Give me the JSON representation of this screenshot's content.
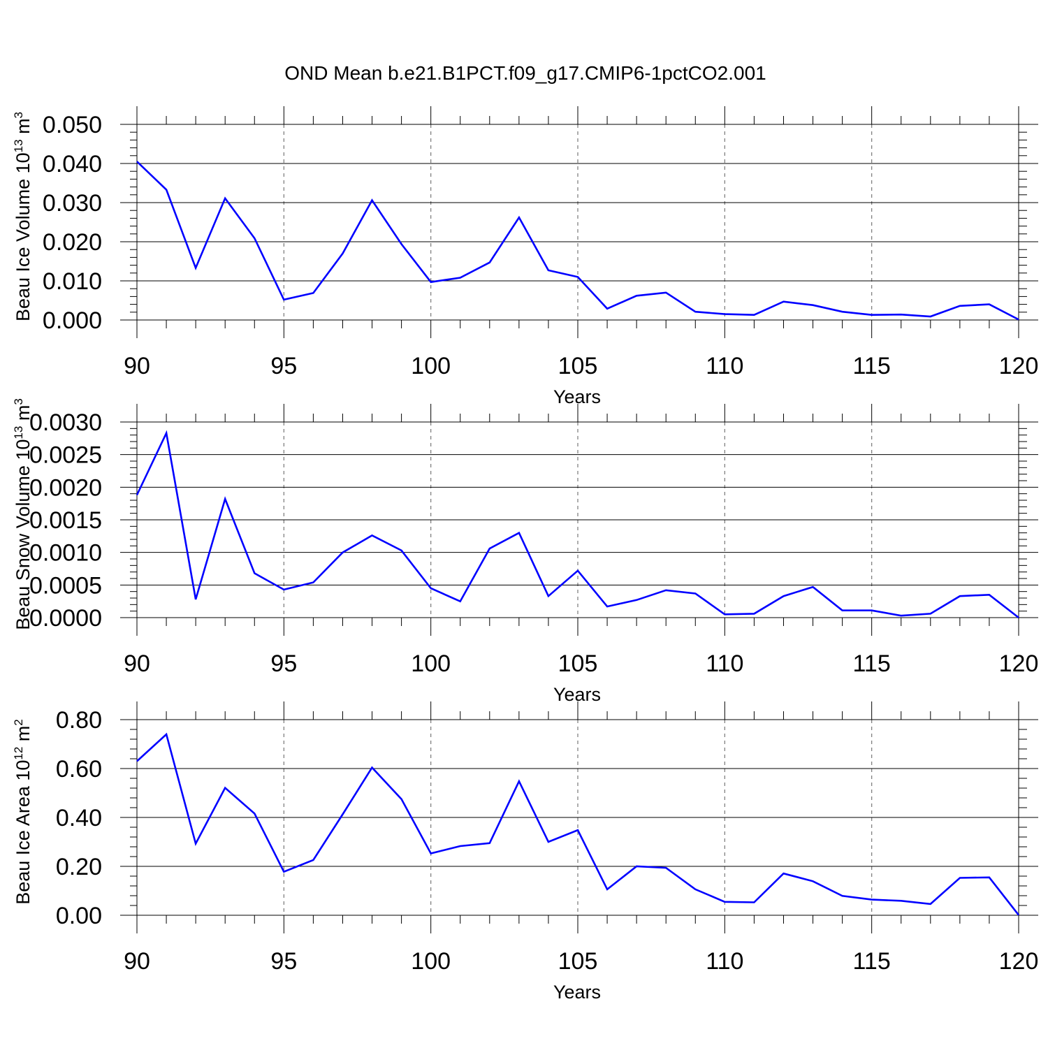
{
  "title": "OND Mean b.e21.B1PCT.f09_g17.CMIP6-1pctCO2.001",
  "line_color": "#0000ff",
  "chart_data": [
    {
      "type": "line",
      "xlabel": "Years",
      "ylabel": "Beau Ice Volume 10",
      "ylabel_sup": "13",
      "ylabel_unit": "m",
      "ylabel_unit_sup": "3",
      "xlim": [
        90,
        120
      ],
      "ylim": [
        0.0,
        0.05
      ],
      "xticks": [
        90,
        95,
        100,
        105,
        110,
        115,
        120
      ],
      "xtick_labels": [
        "90",
        "95",
        "100",
        "105",
        "110",
        "115",
        "120"
      ],
      "yticks": [
        0.0,
        0.01,
        0.02,
        0.03,
        0.04,
        0.05
      ],
      "ytick_labels": [
        "0.000",
        "0.010",
        "0.020",
        "0.030",
        "0.040",
        "0.050"
      ],
      "grid": "vertical dashed at major x ticks",
      "x": [
        90,
        91,
        92,
        93,
        94,
        95,
        96,
        97,
        98,
        99,
        100,
        101,
        102,
        103,
        104,
        105,
        106,
        107,
        108,
        109,
        110,
        111,
        112,
        113,
        114,
        115,
        116,
        117,
        118,
        119,
        120
      ],
      "values": [
        0.0405,
        0.0333,
        0.0133,
        0.0311,
        0.0209,
        0.0052,
        0.0069,
        0.017,
        0.0306,
        0.0194,
        0.0097,
        0.0108,
        0.0147,
        0.0262,
        0.0127,
        0.011,
        0.0029,
        0.0062,
        0.007,
        0.0021,
        0.0015,
        0.0013,
        0.0047,
        0.0038,
        0.0021,
        0.0013,
        0.0014,
        0.0009,
        0.0036,
        0.004,
        0.0001
      ]
    },
    {
      "type": "line",
      "xlabel": "Years",
      "ylabel": "Beau Snow Volume 10",
      "ylabel_sup": "13",
      "ylabel_unit": "m",
      "ylabel_unit_sup": "3",
      "xlim": [
        90,
        120
      ],
      "ylim": [
        0.0,
        0.003
      ],
      "xticks": [
        90,
        95,
        100,
        105,
        110,
        115,
        120
      ],
      "xtick_labels": [
        "90",
        "95",
        "100",
        "105",
        "110",
        "115",
        "120"
      ],
      "yticks": [
        0.0,
        0.0005,
        0.001,
        0.0015,
        0.002,
        0.0025,
        0.003
      ],
      "ytick_labels": [
        "0.0000",
        "0.0005",
        "0.0010",
        "0.0015",
        "0.0020",
        "0.0025",
        "0.0030"
      ],
      "grid": "vertical dashed at major x ticks",
      "x": [
        90,
        91,
        92,
        93,
        94,
        95,
        96,
        97,
        98,
        99,
        100,
        101,
        102,
        103,
        104,
        105,
        106,
        107,
        108,
        109,
        110,
        111,
        112,
        113,
        114,
        115,
        116,
        117,
        118,
        119,
        120
      ],
      "values": [
        0.00188,
        0.00283,
        0.00028,
        0.00182,
        0.00068,
        0.00043,
        0.00054,
        0.001,
        0.00126,
        0.00103,
        0.00045,
        0.00025,
        0.00106,
        0.0013,
        0.00033,
        0.00072,
        0.00017,
        0.00027,
        0.00042,
        0.00037,
        5e-05,
        6e-05,
        0.00033,
        0.00047,
        0.00011,
        0.00011,
        3e-05,
        6e-05,
        0.00033,
        0.00035,
        0.0
      ]
    },
    {
      "type": "line",
      "xlabel": "Years",
      "ylabel": "Beau Ice Area 10",
      "ylabel_sup": "12",
      "ylabel_unit": "m",
      "ylabel_unit_sup": "2",
      "xlim": [
        90,
        120
      ],
      "ylim": [
        0.0,
        0.8
      ],
      "xticks": [
        90,
        95,
        100,
        105,
        110,
        115,
        120
      ],
      "xtick_labels": [
        "90",
        "95",
        "100",
        "105",
        "110",
        "115",
        "120"
      ],
      "yticks": [
        0.0,
        0.2,
        0.4,
        0.6,
        0.8
      ],
      "ytick_labels": [
        "0.00",
        "0.20",
        "0.40",
        "0.60",
        "0.80"
      ],
      "grid": "vertical dashed at major x ticks",
      "x": [
        90,
        91,
        92,
        93,
        94,
        95,
        96,
        97,
        98,
        99,
        100,
        101,
        102,
        103,
        104,
        105,
        106,
        107,
        108,
        109,
        110,
        111,
        112,
        113,
        114,
        115,
        116,
        117,
        118,
        119,
        120
      ],
      "values": [
        0.63,
        0.74,
        0.293,
        0.521,
        0.416,
        0.178,
        0.226,
        0.413,
        0.604,
        0.475,
        0.253,
        0.283,
        0.295,
        0.548,
        0.3,
        0.348,
        0.106,
        0.2,
        0.194,
        0.106,
        0.055,
        0.053,
        0.171,
        0.139,
        0.079,
        0.064,
        0.059,
        0.046,
        0.153,
        0.155,
        0.001
      ]
    }
  ]
}
